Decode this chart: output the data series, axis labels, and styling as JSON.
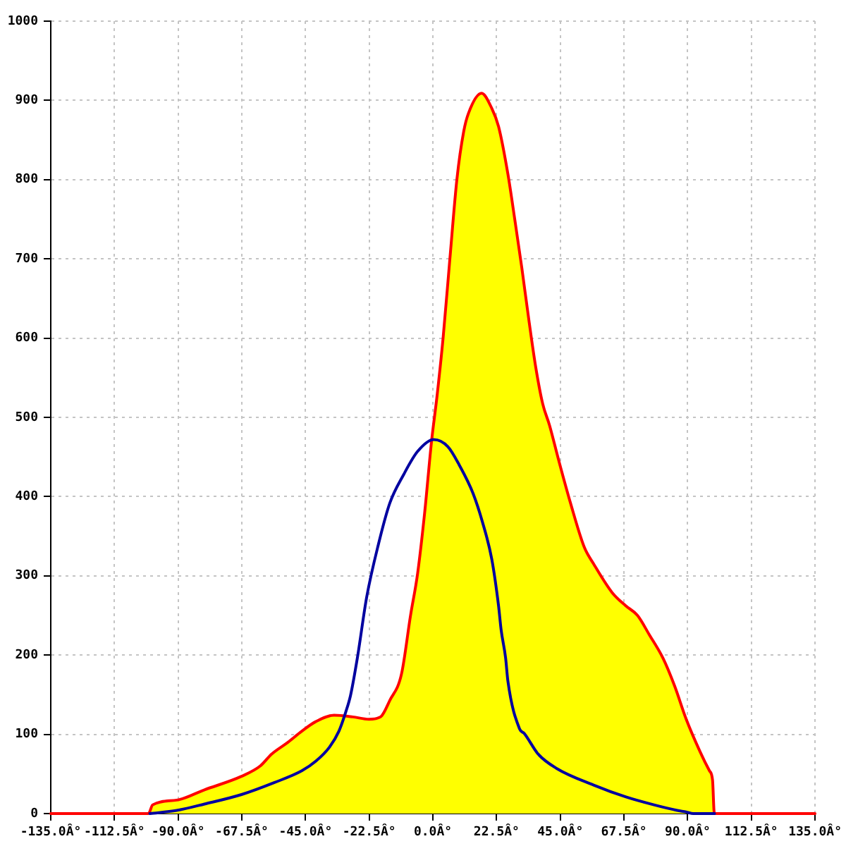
{
  "chart_data": {
    "type": "area",
    "xlim": [
      -135,
      135
    ],
    "xticks": [
      {
        "value": -135,
        "label": "-135.0Â°"
      },
      {
        "value": -112.5,
        "label": "-112.5Â°"
      },
      {
        "value": -90,
        "label": "-90.0Â°"
      },
      {
        "value": -67.5,
        "label": "-67.5Â°"
      },
      {
        "value": -45,
        "label": "-45.0Â°"
      },
      {
        "value": -22.5,
        "label": "-22.5Â°"
      },
      {
        "value": 0,
        "label": "0.0Â°"
      },
      {
        "value": 22.5,
        "label": "22.5Â°"
      },
      {
        "value": 45,
        "label": "45.0Â°"
      },
      {
        "value": 67.5,
        "label": "67.5Â°"
      },
      {
        "value": 90,
        "label": "90.0Â°"
      },
      {
        "value": 112.5,
        "label": "112.5Â°"
      },
      {
        "value": 135,
        "label": "135.0Â°"
      }
    ],
    "ylim": [
      0,
      1000
    ],
    "yticks": [
      0,
      100,
      200,
      300,
      400,
      500,
      600,
      700,
      800,
      900,
      1000
    ],
    "grid": true,
    "marker": "none",
    "series": [
      {
        "type": "line",
        "color": "#ff0000",
        "x": [
          -135,
          -100.5,
          -99,
          -90.5,
          -80.7,
          -67.6,
          -61,
          -57,
          -51.2,
          -46.3,
          -41.4,
          -34.9,
          -28.3,
          -22.6,
          -18.5,
          -15.2,
          -11.1,
          -7.9,
          -5.4,
          -2.9,
          -0.5,
          1.5,
          3.6,
          6,
          8.5,
          10.9,
          12.6,
          17.2,
          20.8,
          23.2,
          26.5,
          29,
          31.4,
          33.9,
          36.3,
          38.8,
          41.2,
          44.5,
          48.6,
          53.5,
          56.8,
          63.3,
          68.2,
          72.3,
          76.4,
          81.3,
          85.4,
          89.5,
          94.4,
          97.7,
          98.8,
          99.3,
          99.5,
          135
        ],
        "values": [
          0,
          0,
          11,
          17,
          30,
          47,
          60,
          75,
          90,
          104,
          116,
          124,
          122,
          119,
          122,
          143,
          176,
          250,
          303,
          380,
          469,
          528,
          600,
          700,
          801,
          861,
          884,
          909,
          890,
          867,
          807,
          748,
          689,
          623,
          564,
          517,
          490,
          445,
          392,
          336,
          315,
          279,
          262,
          250,
          226,
          196,
          161,
          119,
          78,
          54,
          42,
          4,
          0,
          0
        ]
      },
      {
        "type": "area",
        "color": "#ffff00",
        "x": [
          -100.5,
          -99,
          -90.5,
          -80.7,
          -67.6,
          -61,
          -57,
          -51.2,
          -46.3,
          -41.4,
          -34.9,
          -28.3,
          -22.6,
          -18.5,
          -15.2,
          -11.1,
          -7.9,
          -5.4,
          -2.9,
          -0.5,
          1.5,
          3.6,
          6,
          8.5,
          10.9,
          12.6,
          17.2,
          20.8,
          23.2,
          26.5,
          29,
          31.4,
          33.9,
          36.3,
          38.8,
          41.2,
          44.5,
          48.6,
          53.5,
          56.8,
          63.3,
          68.2,
          72.3,
          76.4,
          81.3,
          85.4,
          89.5,
          94.4,
          97.7,
          98.8,
          99.3,
          99.5
        ],
        "values": [
          0,
          11,
          17,
          30,
          47,
          60,
          75,
          90,
          104,
          116,
          124,
          122,
          119,
          122,
          143,
          176,
          250,
          303,
          380,
          469,
          528,
          600,
          700,
          801,
          861,
          884,
          909,
          890,
          867,
          807,
          748,
          689,
          623,
          564,
          517,
          490,
          445,
          392,
          336,
          315,
          279,
          262,
          250,
          226,
          196,
          161,
          119,
          78,
          54,
          42,
          4,
          0
        ]
      },
      {
        "type": "line",
        "color": "#0000a0",
        "x": [
          -100,
          -90.5,
          -80.7,
          -67.6,
          -56.1,
          -46.3,
          -41.4,
          -36.5,
          -33.2,
          -30.8,
          -29.1,
          -26.7,
          -23.4,
          -19.3,
          -15.2,
          -10.3,
          -5.4,
          0.3,
          5.3,
          9.3,
          14.2,
          17.5,
          20.8,
          23.2,
          24.1,
          25.7,
          26.5,
          30.6,
          32.3,
          37.2,
          43.7,
          56.8,
          68.2,
          78.1,
          86.3,
          89.5,
          92,
          99.5
        ],
        "values": [
          0,
          4,
          12,
          24,
          39,
          54,
          66,
          84,
          104,
          128,
          149,
          196,
          273,
          339,
          392,
          428,
          457,
          472,
          463,
          440,
          404,
          368,
          321,
          262,
          232,
          196,
          167,
          107,
          101,
          75,
          57,
          36,
          21,
          11,
          4,
          2,
          0,
          0
        ]
      }
    ]
  }
}
